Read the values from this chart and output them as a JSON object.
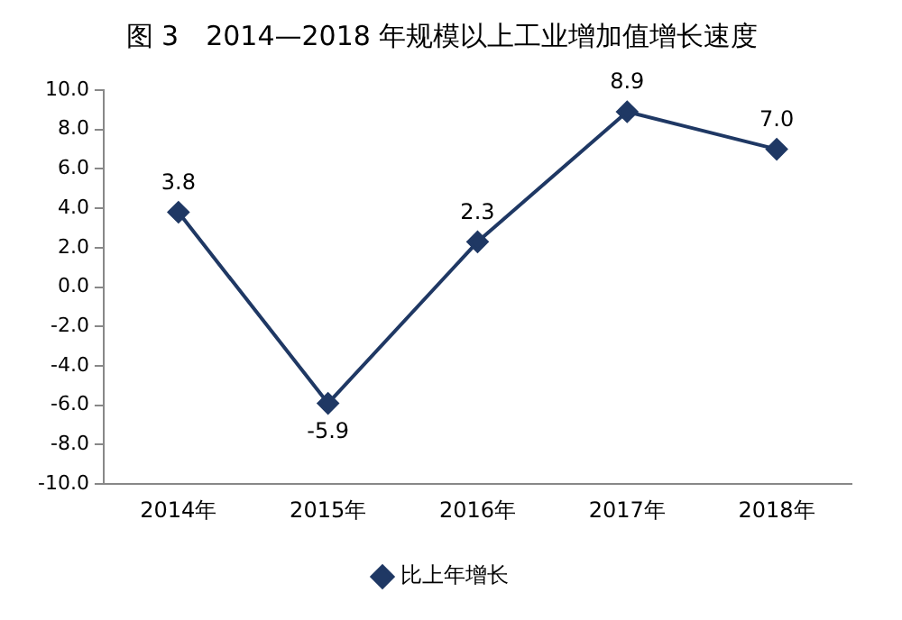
{
  "chart_data": {
    "type": "line",
    "title": "图 3　2014—2018 年规模以上工业增加值增长速度",
    "categories": [
      "2014年",
      "2015年",
      "2016年",
      "2017年",
      "2018年"
    ],
    "series": [
      {
        "name": "比上年增长",
        "color": "#1f3864",
        "values": [
          3.8,
          -5.9,
          2.3,
          8.9,
          7.0
        ]
      }
    ],
    "ylim": [
      -10,
      10
    ],
    "yticks": [
      {
        "value": -10,
        "label": "-10.0"
      },
      {
        "value": -8,
        "label": "-8.0"
      },
      {
        "value": -6,
        "label": "-6.0"
      },
      {
        "value": -4,
        "label": "-4.0"
      },
      {
        "value": -2,
        "label": "-2.0"
      },
      {
        "value": 0,
        "label": "0.0"
      },
      {
        "value": 2,
        "label": "2.0"
      },
      {
        "value": 4,
        "label": "4.0"
      },
      {
        "value": 6,
        "label": "6.0"
      },
      {
        "value": 8,
        "label": "8.0"
      },
      {
        "value": 10,
        "label": "10.0"
      }
    ],
    "value_labels": [
      "3.8",
      "-5.9",
      "2.3",
      "8.9",
      "7.0"
    ],
    "marker": "diamond",
    "line_style": "solid",
    "grid": false,
    "legend": "bottom"
  }
}
